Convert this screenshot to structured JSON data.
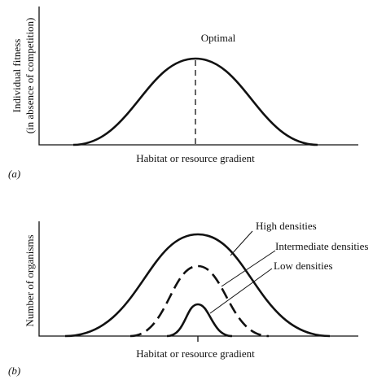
{
  "panel_a": {
    "y_label": [
      "Individual fitness",
      "(in absence of competition)"
    ],
    "annotation": "Optimal",
    "x_label": "Habitat or resource gradient",
    "tag": "(a)"
  },
  "panel_b": {
    "y_label": "Number of organisms",
    "x_label": "Habitat or resource gradient",
    "tag": "(b)",
    "curve_labels": [
      "High densities",
      "Intermediate densities",
      "Low densities"
    ]
  }
}
